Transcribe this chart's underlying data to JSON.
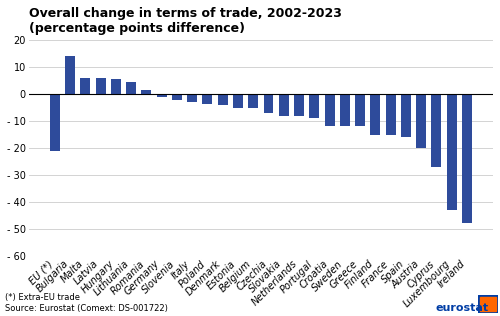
{
  "title": "Overall change in terms of trade, 2002-2023",
  "subtitle": "(percentage points difference)",
  "categories": [
    "EU (*)",
    "Bulgaria",
    "Malta",
    "Latvia",
    "Hungary",
    "Lithuania",
    "Romania",
    "Germany",
    "Slovenia",
    "Italy",
    "Poland",
    "Denmark",
    "Estonia",
    "Belgium",
    "Czechia",
    "Slovakia",
    "Netherlands",
    "Portugal",
    "Croatia",
    "Sweden",
    "Greece",
    "Finland",
    "France",
    "Spain",
    "Austria",
    "Cyprus",
    "Luxembourg",
    "Ireland"
  ],
  "values": [
    -21,
    14,
    6,
    6,
    5.5,
    4.5,
    1.5,
    -1,
    -2,
    -3,
    -3.5,
    -4,
    -5,
    -5,
    -7,
    -8,
    -8,
    -9,
    -12,
    -12,
    -12,
    -15,
    -15,
    -16,
    -20,
    -27,
    -43,
    -48
  ],
  "bar_color": "#2E4B9B",
  "background_color": "#ffffff",
  "ylim": [
    -60,
    20
  ],
  "yticks": [
    20,
    10,
    0,
    -10,
    -20,
    -30,
    -40,
    -50,
    -60
  ],
  "footnote": "(*) Extra-EU trade\nSource: Eurostat (Comext: DS-001722)",
  "eurostat_logo_text": "eurostat",
  "title_fontsize": 9,
  "subtitle_fontsize": 8.5,
  "tick_fontsize": 7
}
